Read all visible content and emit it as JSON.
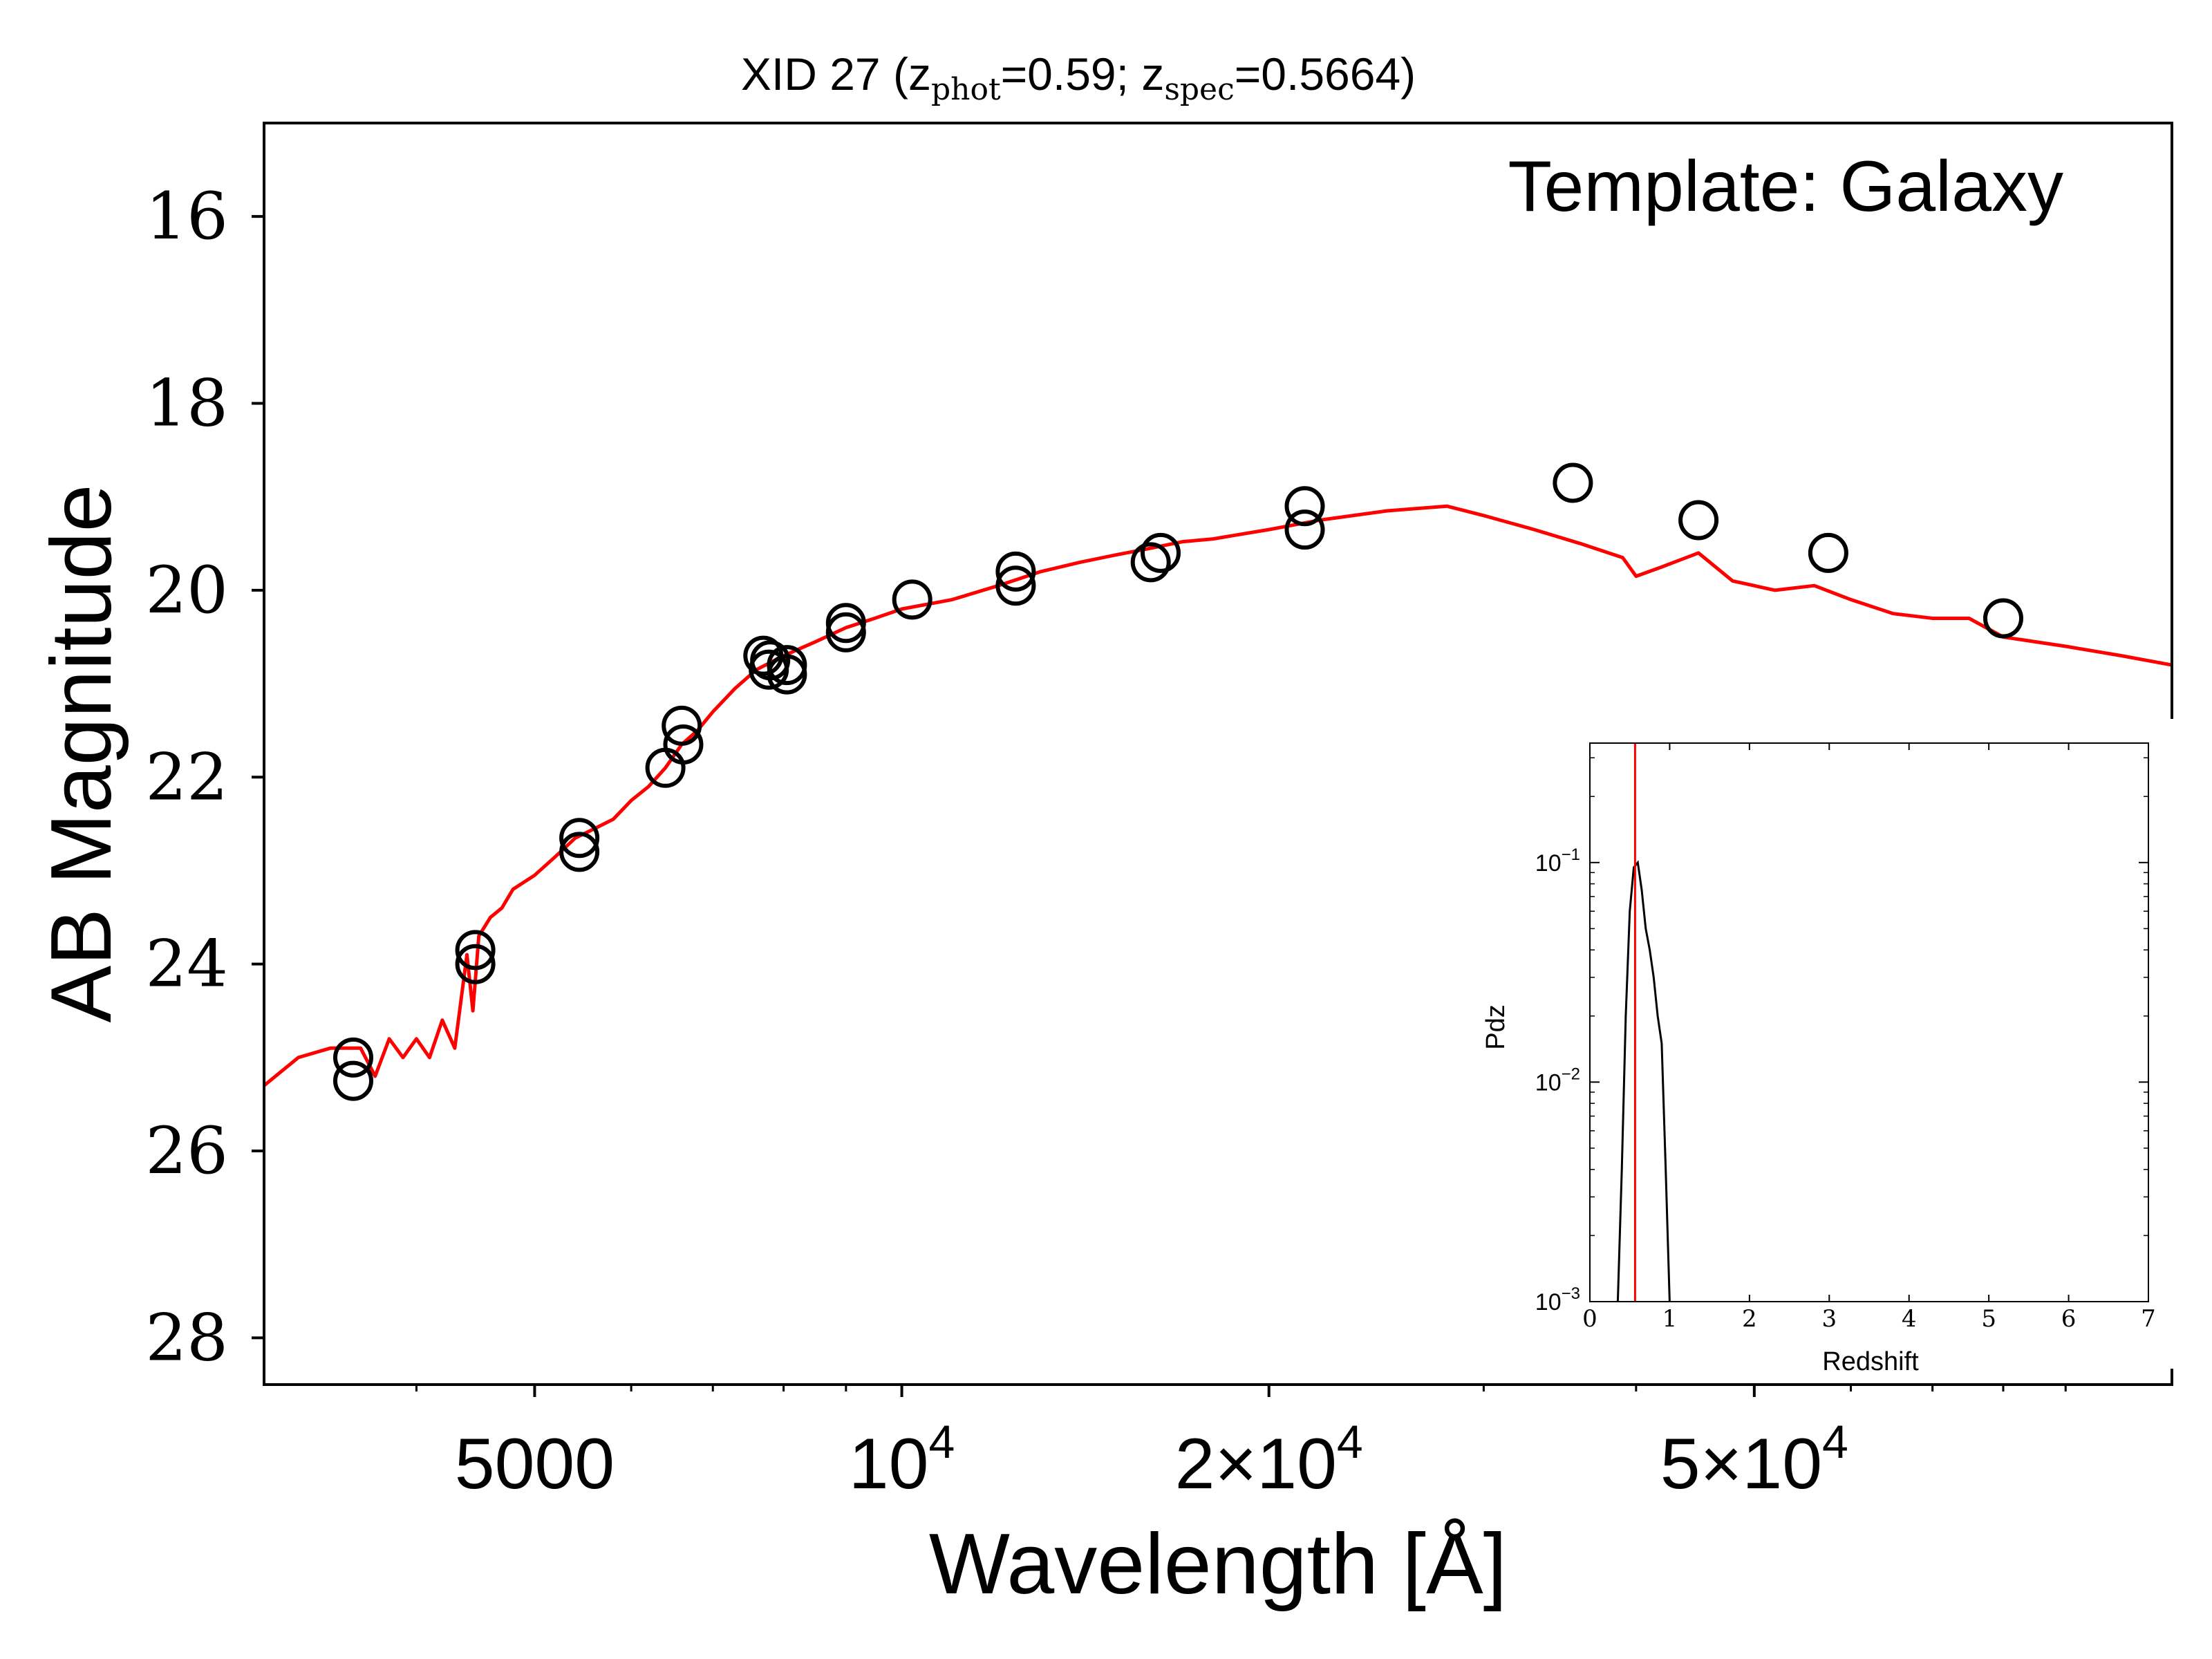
{
  "chart_data": [
    {
      "type": "scatter",
      "title_parts": {
        "prefix": "XID 27 (z",
        "sub1": "phot",
        "mid": "=0.59; z",
        "sub2": "spec",
        "suffix": "=0.5664)"
      },
      "xlabel": "Wavelength [Å]",
      "ylabel": "AB Magnitude",
      "annotation": "Template: Galaxy",
      "x_scale": "log",
      "xlim": [
        3000,
        110000
      ],
      "ylim": [
        28.5,
        15.0
      ],
      "y_inverted": true,
      "y_ticks": [
        "16",
        "18",
        "20",
        "22",
        "24",
        "26",
        "28"
      ],
      "x_ticks": [
        {
          "value": 5000,
          "base": "5000",
          "exp": ""
        },
        {
          "value": 10000,
          "base": "10",
          "exp": "4"
        },
        {
          "value": 20000,
          "base": "2×10",
          "exp": "4"
        },
        {
          "value": 50000,
          "base": "5×10",
          "exp": "4"
        }
      ],
      "series": [
        {
          "kind": "points",
          "color": "#000000",
          "x": [
            3550,
            3550,
            4470,
            4470,
            5440,
            5440,
            6400,
            6600,
            6620,
            7700,
            7780,
            7800,
            8050,
            8050,
            9000,
            9000,
            10200,
            12400,
            12400,
            16000,
            16300,
            21400,
            21400,
            35500,
            45000,
            57500,
            80000
          ],
          "y": [
            25.0,
            25.25,
            23.85,
            24.0,
            22.65,
            22.8,
            21.9,
            21.45,
            21.65,
            20.7,
            20.85,
            20.75,
            20.8,
            20.9,
            20.35,
            20.45,
            20.1,
            19.8,
            19.95,
            19.7,
            19.6,
            19.1,
            19.35,
            18.85,
            19.25,
            19.6,
            20.3
          ]
        },
        {
          "kind": "line",
          "color": "#ff0000",
          "x": [
            3000,
            3200,
            3400,
            3600,
            3700,
            3800,
            3900,
            4000,
            4100,
            4200,
            4300,
            4400,
            4450,
            4500,
            4600,
            4700,
            4800,
            5000,
            5200,
            5400,
            5600,
            5800,
            6000,
            6200,
            6400,
            6600,
            6800,
            7000,
            7300,
            7600,
            8000,
            8500,
            9000,
            9500,
            10000,
            11000,
            12000,
            13000,
            14000,
            15000,
            16000,
            17000,
            18000,
            20000,
            22000,
            25000,
            28000,
            30000,
            33000,
            36000,
            39000,
            40000,
            42000,
            45000,
            48000,
            52000,
            56000,
            60000,
            65000,
            70000,
            75000,
            80000,
            90000,
            100000,
            110000
          ],
          "y": [
            25.3,
            25.0,
            24.9,
            24.9,
            25.2,
            24.8,
            25.0,
            24.8,
            25.0,
            24.6,
            24.9,
            23.9,
            24.5,
            23.7,
            23.5,
            23.4,
            23.2,
            23.05,
            22.85,
            22.65,
            22.55,
            22.45,
            22.25,
            22.1,
            21.9,
            21.65,
            21.5,
            21.3,
            21.05,
            20.85,
            20.7,
            20.55,
            20.4,
            20.3,
            20.2,
            20.1,
            19.95,
            19.8,
            19.7,
            19.62,
            19.55,
            19.48,
            19.45,
            19.35,
            19.25,
            19.15,
            19.1,
            19.2,
            19.35,
            19.5,
            19.65,
            19.85,
            19.75,
            19.6,
            19.9,
            20.0,
            19.95,
            20.1,
            20.25,
            20.3,
            20.3,
            20.5,
            20.6,
            20.7,
            20.8
          ]
        }
      ]
    },
    {
      "type": "line",
      "xlabel": "Redshift",
      "ylabel": "Pdz",
      "y_scale": "log",
      "xlim": [
        0,
        7
      ],
      "ylim": [
        0.001,
        0.35
      ],
      "x_ticks": [
        "0",
        "1",
        "2",
        "3",
        "4",
        "5",
        "6",
        "7"
      ],
      "y_ticks": [
        {
          "value": 0.1,
          "base": "10",
          "exp": "−1"
        },
        {
          "value": 0.01,
          "base": "10",
          "exp": "−2"
        },
        {
          "value": 0.001,
          "base": "10",
          "exp": "−3"
        }
      ],
      "marker_line": {
        "x": 0.5664,
        "color": "#ff0000"
      },
      "series": [
        {
          "kind": "line",
          "color": "#000000",
          "x": [
            0.35,
            0.4,
            0.45,
            0.5,
            0.55,
            0.6,
            0.65,
            0.7,
            0.75,
            0.8,
            0.85,
            0.9,
            0.95,
            1.0
          ],
          "y": [
            0.001,
            0.004,
            0.02,
            0.06,
            0.095,
            0.1,
            0.075,
            0.05,
            0.04,
            0.03,
            0.02,
            0.015,
            0.004,
            0.001
          ]
        }
      ]
    }
  ]
}
